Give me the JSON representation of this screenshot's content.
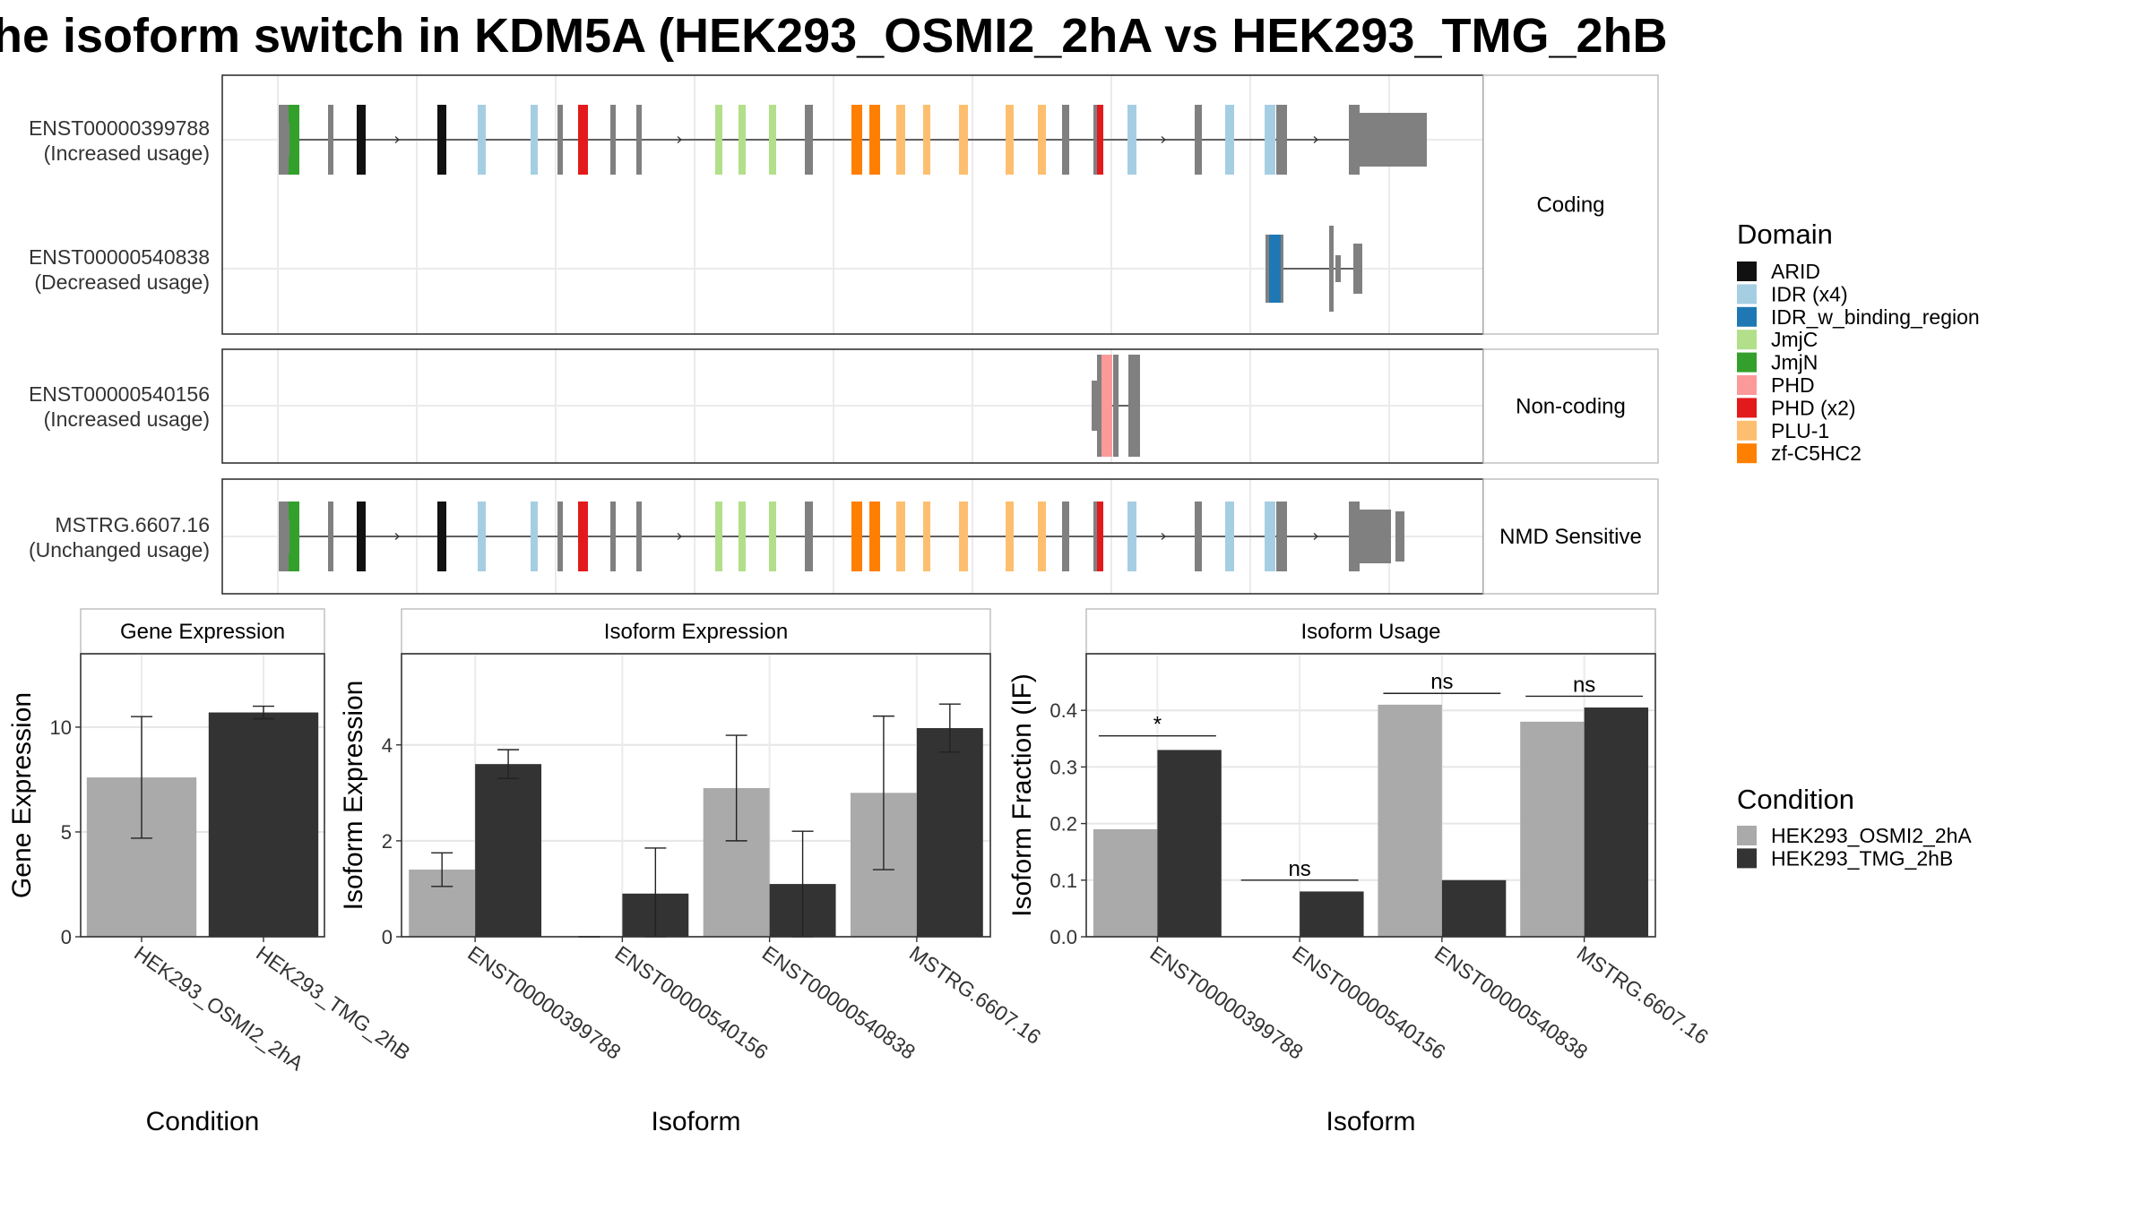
{
  "title": "he isoform switch in KDM5A (HEK293_OSMI2_2hA vs HEK293_TMG_2hB",
  "colors": {
    "ARID": "#111111",
    "IDR (x4)": "#a6cee3",
    "IDR_w_binding_region": "#1f78b4",
    "JmjC": "#b2df8a",
    "JmjN": "#33a02c",
    "PHD": "#fb9a99",
    "PHD (x2)": "#e31a1c",
    "PLU-1": "#fdbf6f",
    "zf-C5HC2": "#ff7f00",
    "exon": "#808080",
    "cond1": "#aaaaaa",
    "cond2": "#333333"
  },
  "structure": {
    "facets": [
      {
        "id": "coding",
        "label": "Coding",
        "tracks": [
          {
            "id": "ENST00000399788",
            "usage": "(Increased usage)",
            "template": "full",
            "tail": "long"
          },
          {
            "id": "ENST00000540838",
            "usage": "(Decreased usage)",
            "template": "short540838"
          }
        ]
      },
      {
        "id": "noncoding",
        "label": "Non-coding",
        "tracks": [
          {
            "id": "ENST00000540156",
            "usage": "(Increased usage)",
            "template": "short540156"
          }
        ]
      },
      {
        "id": "nmd",
        "label": "NMD Sensitive",
        "tracks": [
          {
            "id": "MSTRG.6607.16",
            "usage": "(Unchanged usage)",
            "template": "full",
            "tail": "short"
          }
        ]
      }
    ]
  },
  "legend": {
    "domain_title": "Domain",
    "domain_items": [
      "ARID",
      "IDR (x4)",
      "IDR_w_binding_region",
      "JmjC",
      "JmjN",
      "PHD",
      "PHD (x2)",
      "PLU-1",
      "zf-C5HC2"
    ],
    "condition_title": "Condition",
    "condition_items": [
      "HEK293_OSMI2_2hA",
      "HEK293_TMG_2hB"
    ]
  },
  "chart_data": [
    {
      "type": "bar",
      "strip": "Gene Expression",
      "xlabel": "Condition",
      "ylabel": "Gene Expression",
      "ylim": [
        0,
        13.5
      ],
      "yticks": [
        0,
        5,
        10
      ],
      "categories": [
        "HEK293_OSMI2_2hA",
        "HEK293_TMG_2hB"
      ],
      "values": [
        7.6,
        10.7
      ],
      "errors": [
        [
          4.7,
          10.5
        ],
        [
          10.4,
          11.0
        ]
      ]
    },
    {
      "type": "bar",
      "strip": "Isoform Expression",
      "xlabel": "Isoform",
      "ylabel": "Isoform Expression",
      "ylim": [
        0,
        5.9
      ],
      "yticks": [
        0,
        2,
        4
      ],
      "categories": [
        "ENST00000399788",
        "ENST00000540156",
        "ENST00000540838",
        "MSTRG.6607.16"
      ],
      "series": [
        {
          "name": "HEK293_OSMI2_2hA",
          "values": [
            1.4,
            0,
            3.1,
            3.0
          ],
          "errors": [
            [
              1.05,
              1.75
            ],
            [
              0,
              0
            ],
            [
              2.0,
              4.2
            ],
            [
              1.4,
              4.6
            ]
          ]
        },
        {
          "name": "HEK293_TMG_2hB",
          "values": [
            3.6,
            0.9,
            1.1,
            4.35
          ],
          "errors": [
            [
              3.3,
              3.9
            ],
            [
              0,
              1.85
            ],
            [
              0,
              2.2
            ],
            [
              3.85,
              4.85
            ]
          ]
        }
      ]
    },
    {
      "type": "bar",
      "strip": "Isoform Usage",
      "xlabel": "Isoform",
      "ylabel": "Isoform Fraction (IF)",
      "ylim": [
        0,
        0.5
      ],
      "yticks": [
        "0.0",
        "0.1",
        "0.2",
        "0.3",
        "0.4"
      ],
      "categories": [
        "ENST00000399788",
        "ENST00000540156",
        "ENST00000540838",
        "MSTRG.6607.16"
      ],
      "series": [
        {
          "name": "HEK293_OSMI2_2hA",
          "values": [
            0.19,
            0,
            0.41,
            0.38
          ]
        },
        {
          "name": "HEK293_TMG_2hB",
          "values": [
            0.33,
            0.08,
            0.1,
            0.405
          ]
        }
      ],
      "significance": [
        {
          "label": "*",
          "y": 0.355
        },
        {
          "label": "ns",
          "y": 0.1
        },
        {
          "label": "ns",
          "y": 0.43
        },
        {
          "label": "ns",
          "y": 0.425
        }
      ]
    }
  ]
}
